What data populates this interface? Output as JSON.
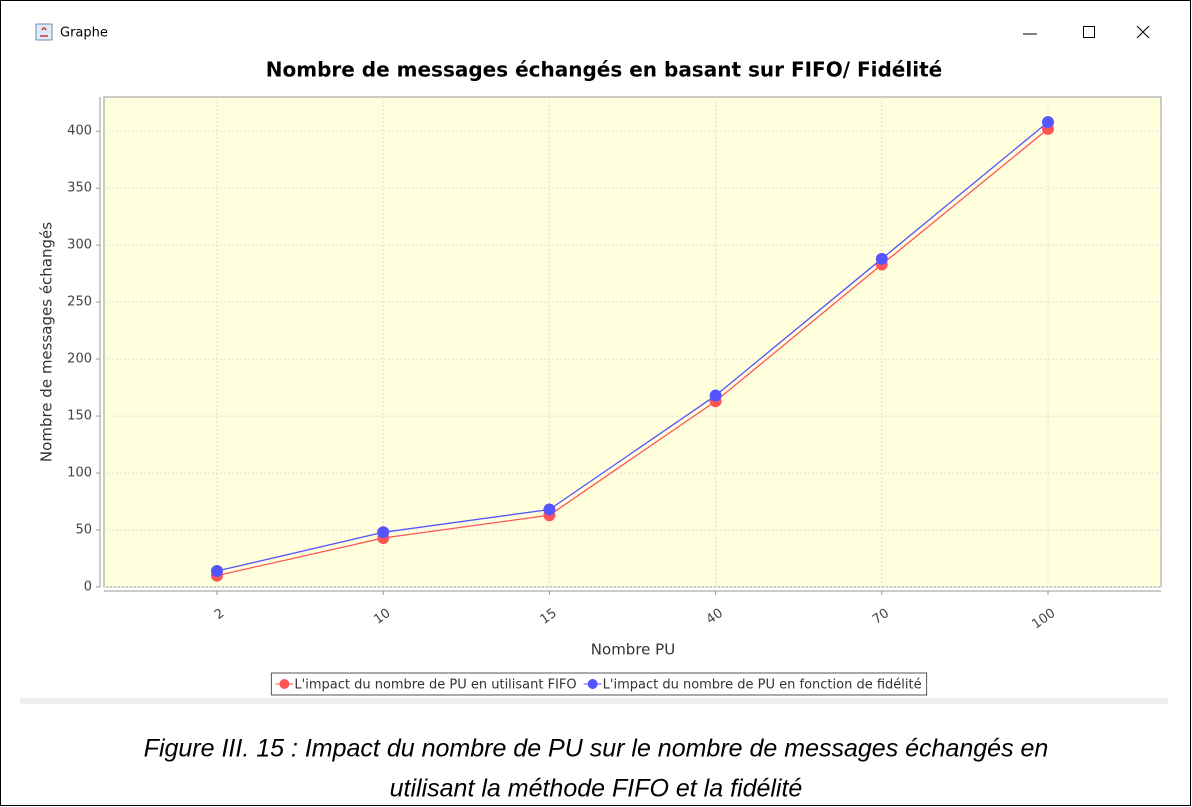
{
  "window": {
    "title": "Graphe"
  },
  "chart_data": {
    "type": "line",
    "title": "Nombre de messages échangés en basant sur FIFO/ Fidélité",
    "x_label": "Nombre PU",
    "y_label": "Nombre de messages échangés",
    "categories": [
      "2",
      "10",
      "15",
      "40",
      "70",
      "100"
    ],
    "series": [
      {
        "name": "L'impact du nombre de PU en utilisant FIFO",
        "color": "#ff5555",
        "values": [
          10,
          43,
          63,
          163,
          283,
          402
        ]
      },
      {
        "name": "L'impact du nombre de PU en fonction de fidélité",
        "color": "#5555ff",
        "values": [
          14,
          48,
          68,
          168,
          288,
          408
        ]
      }
    ],
    "ylim": [
      0,
      430
    ],
    "yticks": [
      0,
      50,
      100,
      150,
      200,
      250,
      300,
      350,
      400
    ],
    "grid": true,
    "legend": "bottom"
  },
  "caption": [
    "Figure III. 15 : Impact du nombre de PU sur le nombre de messages échangés en",
    "utilisant la méthode FIFO et la fidélité"
  ]
}
